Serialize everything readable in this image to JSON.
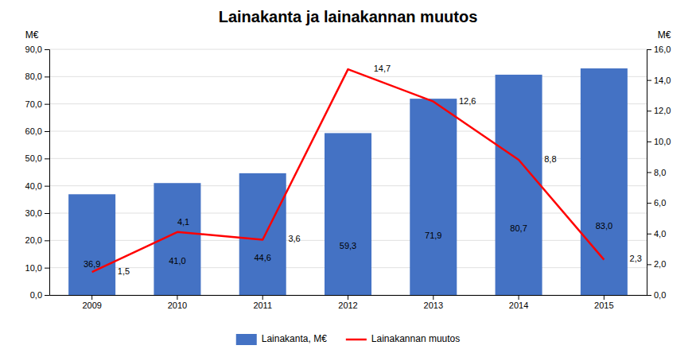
{
  "chart_data": {
    "type": "bar",
    "title": "Lainakanta ja lainakannan muutos",
    "categories": [
      "2009",
      "2010",
      "2011",
      "2012",
      "2013",
      "2014",
      "2015"
    ],
    "series": [
      {
        "name": "Lainakanta, M€",
        "type": "bar",
        "color": "#4472C4",
        "values": [
          36.9,
          41.0,
          44.6,
          59.3,
          71.9,
          80.7,
          83.0
        ],
        "value_labels": [
          "36,9",
          "41,0",
          "44,6",
          "59,3",
          "71,9",
          "80,7",
          "83,0"
        ]
      },
      {
        "name": "Lainakannan muutos",
        "type": "line",
        "color": "#FF0000",
        "axis": "y2",
        "values": [
          1.5,
          4.1,
          3.6,
          14.7,
          12.6,
          8.8,
          2.3
        ],
        "value_labels": [
          "1,5",
          "4,1",
          "3,6",
          "14,7",
          "12,6",
          "8,8",
          "2,3"
        ]
      }
    ],
    "ylabel": "M€",
    "y2label": "M€",
    "ylim": [
      0,
      90
    ],
    "yticks": [
      {
        "value": 0,
        "label": "0,0"
      },
      {
        "value": 10,
        "label": "10,0"
      },
      {
        "value": 20,
        "label": "20,0"
      },
      {
        "value": 30,
        "label": "30,0"
      },
      {
        "value": 40,
        "label": "40,0"
      },
      {
        "value": 50,
        "label": "50,0"
      },
      {
        "value": 60,
        "label": "60,0"
      },
      {
        "value": 70,
        "label": "70,0"
      },
      {
        "value": 80,
        "label": "80,0"
      },
      {
        "value": 90,
        "label": "90,0"
      }
    ],
    "y2lim": [
      0,
      16
    ],
    "y2ticks": [
      {
        "value": 0,
        "label": "0,0"
      },
      {
        "value": 2,
        "label": "2,0"
      },
      {
        "value": 4,
        "label": "4,0"
      },
      {
        "value": 6,
        "label": "6,0"
      },
      {
        "value": 8,
        "label": "8,0"
      },
      {
        "value": 10,
        "label": "10,0"
      },
      {
        "value": 12,
        "label": "12,0"
      },
      {
        "value": 14,
        "label": "14,0"
      },
      {
        "value": 16,
        "label": "16,0"
      }
    ],
    "grid": true,
    "legend": "bottom",
    "data_labels": true
  }
}
